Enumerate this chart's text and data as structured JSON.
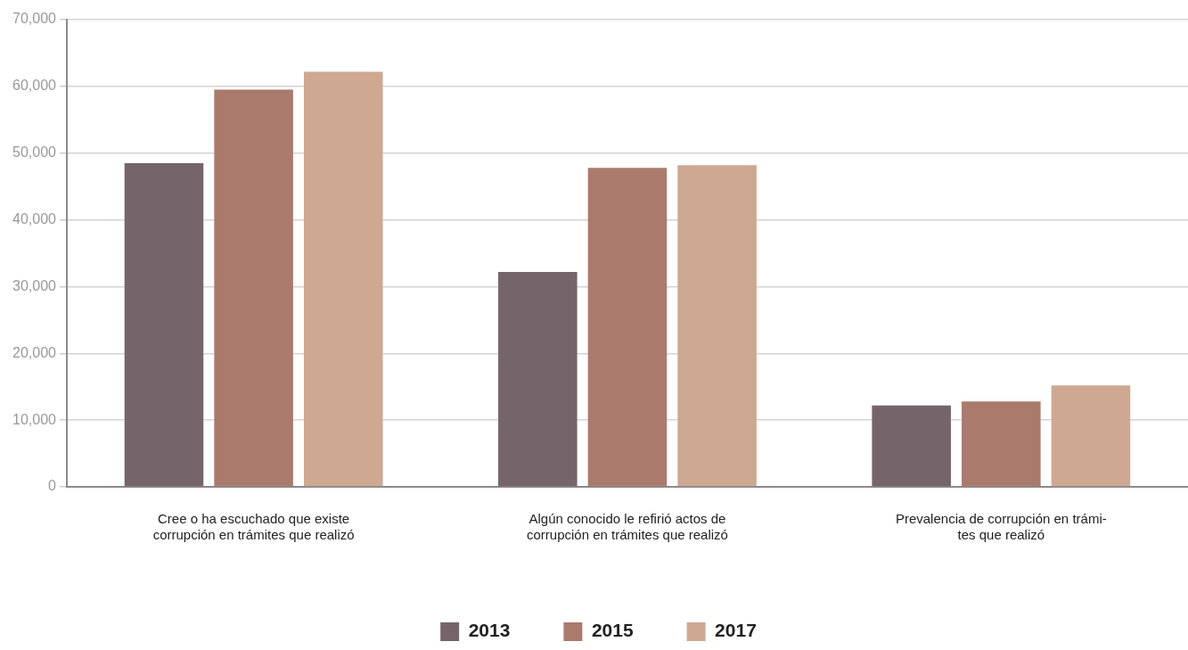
{
  "chart_data": {
    "type": "bar",
    "categories": [
      "Cree o ha escuchado que existe\ncorrupción en trámites que realizó",
      "Algún conocido le refirió actos de\ncorrupción en trámites que realizó",
      "Prevalencia de corrupción en trámi-\ntes que realizó"
    ],
    "series": [
      {
        "name": "2013",
        "color": "#75656b",
        "values": [
          48500,
          32200,
          12200
        ]
      },
      {
        "name": "2015",
        "color": "#aa7b6c",
        "values": [
          59500,
          47800,
          12800
        ]
      },
      {
        "name": "2017",
        "color": "#cea891",
        "values": [
          62200,
          48200,
          15200
        ]
      }
    ],
    "ylim": [
      0,
      70000
    ],
    "yticks": [
      {
        "value": 0,
        "label": "0"
      },
      {
        "value": 10000,
        "label": "10,000"
      },
      {
        "value": 20000,
        "label": "20,000"
      },
      {
        "value": 30000,
        "label": "30,000"
      },
      {
        "value": 40000,
        "label": "40,000"
      },
      {
        "value": 50000,
        "label": "50,000"
      },
      {
        "value": 60000,
        "label": "60,000"
      },
      {
        "value": 70000,
        "label": "70,000"
      }
    ],
    "grid": "y",
    "legend": "bottom"
  }
}
